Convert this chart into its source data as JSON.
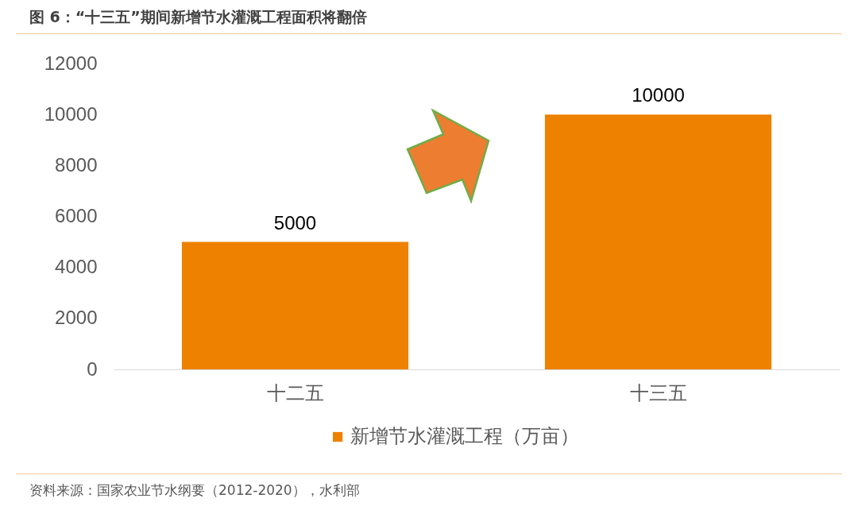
{
  "chart_data": {
    "type": "bar",
    "title": "图 6：“十三五”期间新增节水灌溉工程面积将翻倍",
    "categories": [
      "十二五",
      "十三五"
    ],
    "series": [
      {
        "name": "新增节水灌溉工程（万亩）",
        "color": "#ee8100",
        "values": [
          5000,
          10000
        ]
      }
    ],
    "ylim": [
      0,
      12000
    ],
    "yticks": [
      0,
      2000,
      4000,
      6000,
      8000,
      10000,
      12000
    ],
    "data_labels": true,
    "legend": "bottom",
    "annotations": [
      "资料来源：国家农业节水纲要（2012-2020），水利部"
    ]
  }
}
